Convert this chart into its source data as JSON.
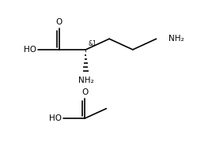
{
  "bg_color": "#ffffff",
  "line_color": "#000000",
  "font_size_label": 7.5,
  "font_size_stereo": 5.5,
  "fig_width": 2.49,
  "fig_height": 2.13,
  "dpi": 100,
  "xlim": [
    0,
    10
  ],
  "ylim": [
    0,
    8.5
  ]
}
